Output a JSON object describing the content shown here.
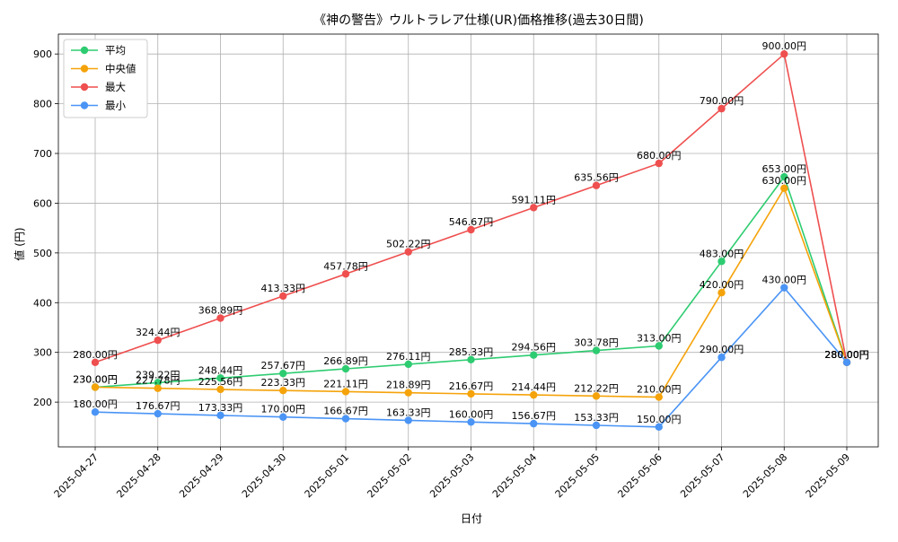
{
  "chart_data": {
    "type": "line",
    "title": "《神の警告》ウルトラレア仕様(UR)価格推移(過去30日間)",
    "xlabel": "日付",
    "ylabel": "値 (円)",
    "categories": [
      "2025-04-27",
      "2025-04-28",
      "2025-04-29",
      "2025-04-30",
      "2025-05-01",
      "2025-05-02",
      "2025-05-03",
      "2025-05-04",
      "2025-05-05",
      "2025-05-06",
      "2025-05-07",
      "2025-05-08",
      "2025-05-09"
    ],
    "ylim": [
      110,
      940
    ],
    "yticks": [
      200,
      300,
      400,
      500,
      600,
      700,
      800,
      900
    ],
    "grid": true,
    "legend": "top-left",
    "value_suffix": "円",
    "series": [
      {
        "name": "平均",
        "color": "#2ecc71",
        "values": [
          230.0,
          239.22,
          248.44,
          257.67,
          266.89,
          276.11,
          285.33,
          294.56,
          303.78,
          313.0,
          483.0,
          653.0,
          280.0
        ]
      },
      {
        "name": "中央値",
        "color": "#f5a30a",
        "values": [
          230.0,
          227.78,
          225.56,
          223.33,
          221.11,
          218.89,
          216.67,
          214.44,
          212.22,
          210.0,
          420.0,
          630.0,
          280.0
        ]
      },
      {
        "name": "最大",
        "color": "#ef4f4f",
        "values": [
          280.0,
          324.44,
          368.89,
          413.33,
          457.78,
          502.22,
          546.67,
          591.11,
          635.56,
          680.0,
          790.0,
          900.0,
          280.0
        ]
      },
      {
        "name": "最小",
        "color": "#4a94f5",
        "values": [
          180.0,
          176.67,
          173.33,
          170.0,
          166.67,
          163.33,
          160.0,
          156.67,
          153.33,
          150.0,
          290.0,
          430.0,
          280.0
        ]
      }
    ]
  }
}
